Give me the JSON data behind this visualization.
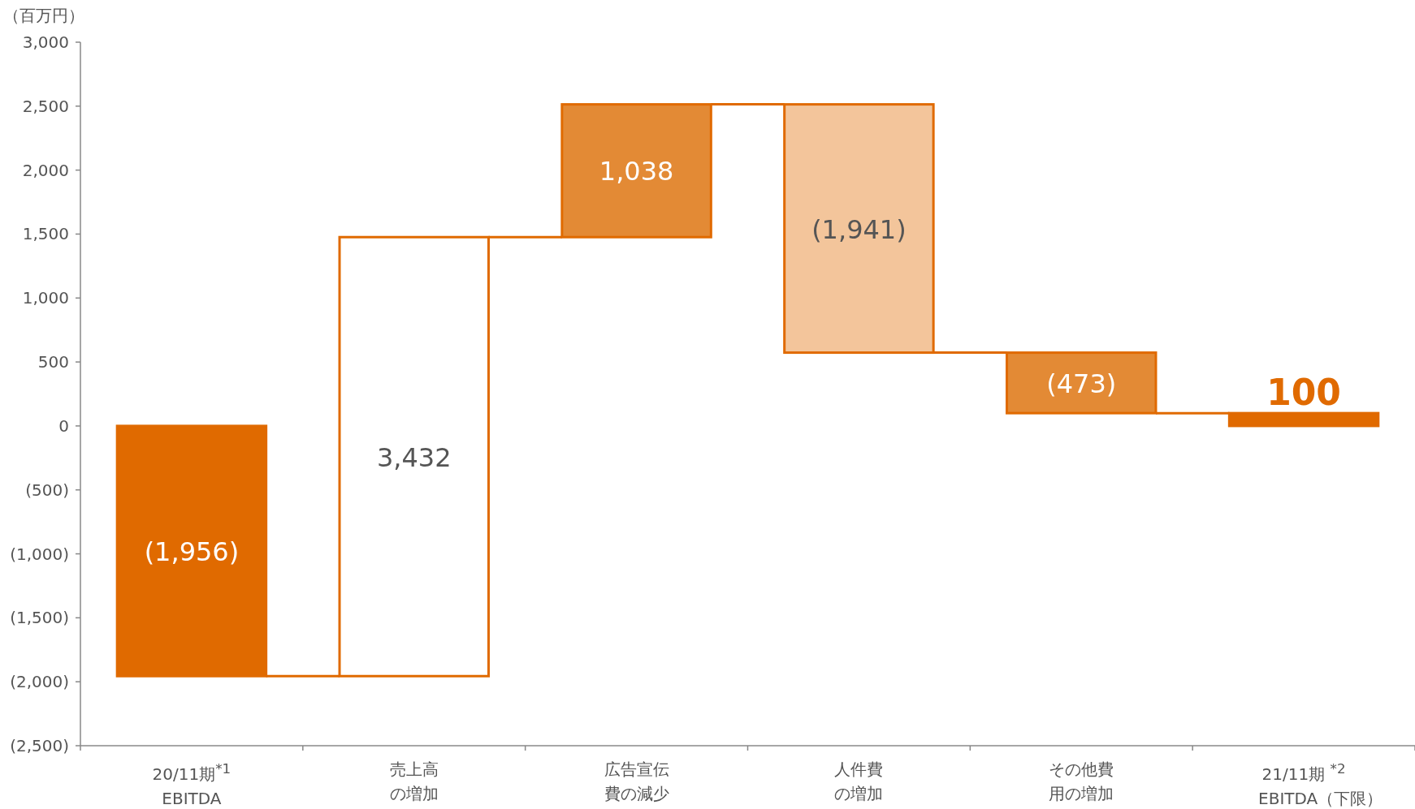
{
  "chart_data": {
    "type": "bar",
    "ylabel": "（百万円）",
    "categories": [
      "20/11期$^{*1}$\nEBITDA",
      "売上高の増加",
      "広告宣伝費の減少",
      "人件費の増加",
      "その他費用の増加",
      "21/11期 $^{*2}$\nEBITDA（下限）"
    ],
    "base": [
      0,
      -1956,
      1476,
      2514,
      573,
      0
    ],
    "values": [
      -1956,
      3432,
      1038,
      -1941,
      -473,
      100
    ],
    "colors": [
      "#e06a00",
      "#ffffff",
      "#e38a35",
      "#f3c59b",
      "#e38a35",
      "#e06a00"
    ],
    "value_labels": [
      "(1,956)",
      "3,432",
      "1,038",
      "(1,941)",
      "(473)",
      "100"
    ],
    "ylim": [
      -2500,
      3000
    ],
    "yticks": [
      {
        "value": -2500,
        "label": "(2,500)"
      },
      {
        "value": -2000,
        "label": "(2,000)"
      },
      {
        "value": -1500,
        "label": "(1,500)"
      },
      {
        "value": -1000,
        "label": "(1,000)"
      },
      {
        "value": -500,
        "label": "(500)"
      },
      0,
      500,
      {
        "value": 1000,
        "label": "1,000"
      },
      {
        "value": 1500,
        "label": "1,500"
      },
      {
        "value": 2000,
        "label": "2,000"
      },
      {
        "value": 2500,
        "label": "2,500"
      },
      {
        "value": 3000,
        "label": "3,000"
      }
    ],
    "grid": false
  }
}
